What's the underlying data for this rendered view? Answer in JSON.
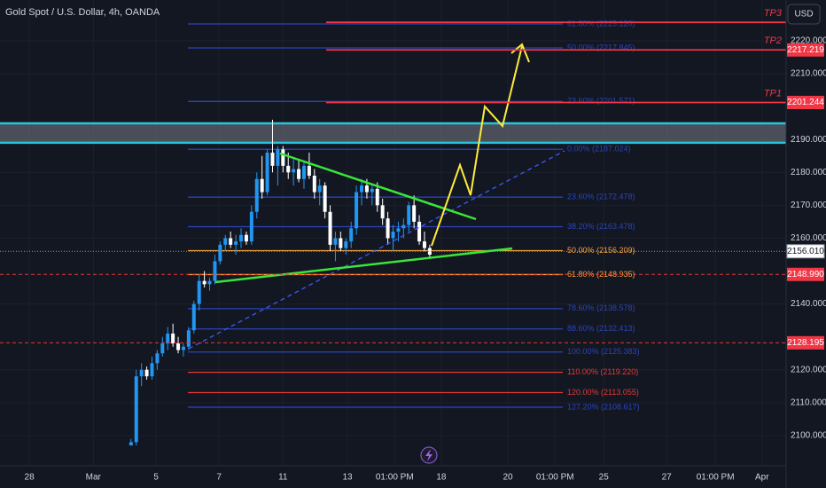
{
  "chart_data": {
    "type": "candlestick",
    "title": "Gold Spot / U.S. Dollar, 4h, OANDA",
    "currency": "USD",
    "x": [
      25,
      26,
      27,
      28,
      29,
      30,
      31,
      32,
      33,
      34,
      35,
      36,
      37,
      38,
      39,
      40,
      41,
      42,
      43,
      44,
      45,
      46,
      47,
      48,
      49,
      50,
      51,
      52,
      53,
      54,
      55,
      56,
      57,
      58,
      59,
      60,
      61,
      62,
      63,
      64,
      65,
      66,
      67,
      68,
      69,
      70,
      71,
      72,
      73,
      74,
      75,
      76,
      77,
      78,
      79,
      80,
      81,
      82
    ],
    "open": [
      2097,
      2098,
      2118,
      2120,
      2118,
      2122,
      2125,
      2128,
      2131,
      2128,
      2126,
      2127,
      2132,
      2140,
      2147,
      2146,
      2147,
      2153,
      2158,
      2160,
      2158,
      2159,
      2161,
      2159,
      2168,
      2178,
      2174,
      2186,
      2182,
      2187,
      2182,
      2180,
      2181,
      2178,
      2182,
      2179,
      2174,
      2176,
      2168,
      2158,
      2160,
      2157,
      2159,
      2163,
      2174,
      2176,
      2174,
      2175,
      2170,
      2166,
      2160,
      2162,
      2163,
      2164,
      2170,
      2165,
      2159,
      2157
    ],
    "high": [
      2099,
      2120,
      2122,
      2121,
      2124,
      2126,
      2130,
      2133,
      2134,
      2130,
      2128,
      2133,
      2141,
      2149,
      2150,
      2148,
      2155,
      2159,
      2161,
      2162,
      2161,
      2163,
      2162,
      2170,
      2180,
      2185,
      2187,
      2196,
      2188,
      2188,
      2186,
      2184,
      2184,
      2183,
      2186,
      2181,
      2178,
      2177,
      2170,
      2162,
      2162,
      2160,
      2165,
      2176,
      2178,
      2178,
      2176,
      2177,
      2172,
      2168,
      2164,
      2165,
      2166,
      2171,
      2173,
      2167,
      2162,
      2158
    ],
    "low": [
      2097,
      2097,
      2115,
      2117,
      2117,
      2120,
      2124,
      2126,
      2127,
      2125,
      2124,
      2126,
      2131,
      2138,
      2145,
      2144,
      2146,
      2152,
      2156,
      2157,
      2155,
      2157,
      2158,
      2158,
      2166,
      2172,
      2173,
      2180,
      2176,
      2180,
      2178,
      2176,
      2177,
      2175,
      2178,
      2172,
      2170,
      2166,
      2156,
      2153,
      2156,
      2155,
      2157,
      2161,
      2170,
      2172,
      2170,
      2168,
      2164,
      2158,
      2156,
      2159,
      2160,
      2162,
      2163,
      2158,
      2156,
      2154
    ],
    "close": [
      2098,
      2118,
      2120,
      2118,
      2122,
      2125,
      2128,
      2131,
      2128,
      2126,
      2127,
      2132,
      2140,
      2147,
      2146,
      2147,
      2153,
      2158,
      2160,
      2158,
      2159,
      2161,
      2159,
      2168,
      2178,
      2174,
      2186,
      2182,
      2187,
      2182,
      2180,
      2181,
      2178,
      2182,
      2179,
      2174,
      2176,
      2168,
      2158,
      2160,
      2157,
      2159,
      2163,
      2174,
      2176,
      2174,
      2175,
      2170,
      2166,
      2160,
      2162,
      2163,
      2164,
      2170,
      2165,
      2159,
      2157,
      2155
    ],
    "up_color": "#2196f3",
    "down_color": "#ffffff",
    "xlim": [
      0,
      150
    ],
    "xticks": [
      {
        "value": 5.6,
        "label": "28"
      },
      {
        "value": 17.8,
        "label": "Mar"
      },
      {
        "value": 29.8,
        "label": "5"
      },
      {
        "value": 41.8,
        "label": "7"
      },
      {
        "value": 54,
        "label": "11"
      },
      {
        "value": 66.3,
        "label": "13"
      },
      {
        "value": 75.3,
        "label": "01:00 PM"
      },
      {
        "value": 84.2,
        "label": "18"
      },
      {
        "value": 96.9,
        "label": "20"
      },
      {
        "value": 105.9,
        "label": "01:00 PM"
      },
      {
        "value": 115.2,
        "label": "25"
      },
      {
        "value": 127.2,
        "label": "27"
      },
      {
        "value": 136.5,
        "label": "01:00 PM"
      },
      {
        "value": 145.4,
        "label": "Apr"
      }
    ],
    "ylim": [
      2090.8,
      2232.4
    ],
    "yticks": [
      {
        "value": 2100,
        "label": "2100.000"
      },
      {
        "value": 2110,
        "label": "2110.000"
      },
      {
        "value": 2120,
        "label": "2120.000"
      },
      {
        "value": 2140,
        "label": "2140.000"
      },
      {
        "value": 2160,
        "label": "2160.000"
      },
      {
        "value": 2170,
        "label": "2170.000"
      },
      {
        "value": 2180,
        "label": "2180.000"
      },
      {
        "value": 2190,
        "label": "2190.000"
      },
      {
        "value": 2210,
        "label": "2210.000"
      },
      {
        "value": 2220,
        "label": "2220.000"
      }
    ],
    "fib_levels": [
      {
        "label": "61.80% (2225.120)",
        "value": 2225.12,
        "color": "#2a44b8"
      },
      {
        "label": "50.00% (2217.845)",
        "value": 2217.845,
        "color": "#2a44b8"
      },
      {
        "label": "23.60% (2201.571)",
        "value": 2201.571,
        "color": "#2a44b8"
      },
      {
        "label": "0.00% (2187.024)",
        "value": 2187.024,
        "color": "#2a44b8"
      },
      {
        "label": "23.60% (2172.478)",
        "value": 2172.478,
        "color": "#2a44b8"
      },
      {
        "label": "38.20% (2163.478)",
        "value": 2163.478,
        "color": "#2a44b8"
      },
      {
        "label": "50.00% (2156.209)",
        "value": 2156.209,
        "color": "#f7a035"
      },
      {
        "label": "61.80% (2148.935)",
        "value": 2148.935,
        "color": "#f7a035"
      },
      {
        "label": "78.60% (2138.578)",
        "value": 2138.578,
        "color": "#2a44b8"
      },
      {
        "label": "88.60% (2132.413)",
        "value": 2132.413,
        "color": "#2a44b8"
      },
      {
        "label": "100.00% (2125.383)",
        "value": 2125.383,
        "color": "#2a44b8"
      },
      {
        "label": "110.00% (2119.220)",
        "value": 2119.22,
        "color": "#e53935"
      },
      {
        "label": "120.00% (2113.055)",
        "value": 2113.055,
        "color": "#e53935"
      },
      {
        "label": "127.20% (2108.617)",
        "value": 2108.617,
        "color": "#2a44b8"
      }
    ],
    "targets": [
      {
        "name": "TP3",
        "value": 2225.6
      },
      {
        "name": "TP2",
        "value": 2217.219,
        "label": "2217.219"
      },
      {
        "name": "TP1",
        "value": 2201.244,
        "label": "2201.244"
      }
    ],
    "price_lines": [
      {
        "value": 2148.99,
        "label": "2148.990"
      },
      {
        "value": 2128.195,
        "label": "2128.195"
      }
    ],
    "last_price": {
      "value": 2156.01,
      "label": "2156.010"
    },
    "zone": [
      2189.0,
      2194.9
    ]
  }
}
